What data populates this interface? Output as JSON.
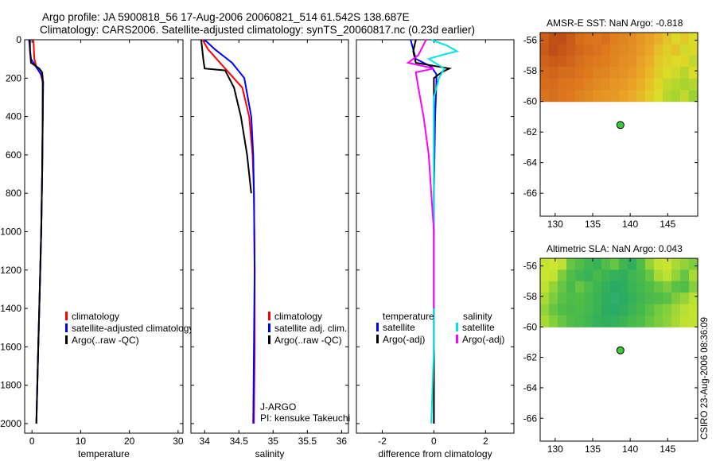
{
  "header": {
    "line1": "Argo profile: JA 5900818_56 17-Aug-2006 20060821_514 61.542S 138.687E",
    "line2": "Climatology: CARS2006. Satellite-adjusted climatology: synTS_20060817.nc (0.23d earlier)"
  },
  "colors": {
    "climatology": "#ff0000",
    "satellite": "#0000ff",
    "argo": "#000000",
    "salinity_satellite": "#00e5e5",
    "salinity_argo": "#ff00ff",
    "marker": "#33cc33"
  },
  "chart_data": [
    {
      "id": "temperature",
      "type": "line",
      "xlabel": "temperature",
      "ylabel": "",
      "xlim": [
        -1.5,
        31
      ],
      "ylim": [
        2050,
        0
      ],
      "xticks": [
        0,
        10,
        20,
        30
      ],
      "yticks": [
        0,
        200,
        400,
        600,
        800,
        1000,
        1200,
        1400,
        1600,
        1800,
        2000
      ],
      "legend": {
        "position": "lower-right",
        "entries": [
          "climatology",
          "satellite-adjusted climatology",
          "Argo(..raw -QC)"
        ]
      },
      "series": [
        {
          "name": "climatology",
          "color_key": "climatology",
          "points": [
            [
              0.3,
              0
            ],
            [
              0.4,
              50
            ],
            [
              0.5,
              100
            ],
            [
              0.9,
              140
            ],
            [
              1.8,
              180
            ],
            [
              2.2,
              220
            ],
            [
              2.2,
              400
            ],
            [
              2.1,
              700
            ],
            [
              1.9,
              1000
            ],
            [
              1.6,
              1300
            ],
            [
              1.3,
              1600
            ],
            [
              1.1,
              1800
            ],
            [
              0.9,
              2000
            ]
          ]
        },
        {
          "name": "satellite-adjusted climatology",
          "color_key": "satellite",
          "points": [
            [
              -0.6,
              0
            ],
            [
              -0.4,
              50
            ],
            [
              -0.2,
              100
            ],
            [
              0.8,
              140
            ],
            [
              1.9,
              180
            ],
            [
              2.3,
              220
            ],
            [
              2.2,
              400
            ],
            [
              2.1,
              700
            ],
            [
              1.9,
              1000
            ],
            [
              1.6,
              1300
            ],
            [
              1.3,
              1600
            ],
            [
              1.1,
              1800
            ],
            [
              0.9,
              2000
            ]
          ]
        },
        {
          "name": "Argo(..raw -QC)",
          "color_key": "argo",
          "points": [
            [
              -0.4,
              0
            ],
            [
              -0.4,
              60
            ],
            [
              -0.2,
              120
            ],
            [
              1.5,
              150
            ],
            [
              2.1,
              170
            ],
            [
              2.2,
              200
            ],
            [
              2.2,
              400
            ],
            [
              2.1,
              700
            ],
            [
              1.9,
              1000
            ],
            [
              1.6,
              1300
            ],
            [
              1.3,
              1600
            ],
            [
              1.1,
              1800
            ],
            [
              0.9,
              2000
            ]
          ]
        }
      ]
    },
    {
      "id": "salinity",
      "type": "line",
      "xlabel": "salinity",
      "ylabel": "",
      "xlim": [
        33.8,
        36.1
      ],
      "ylim": [
        2050,
        0
      ],
      "xticks": [
        34,
        34.5,
        35,
        35.5,
        36
      ],
      "xtick_labels": [
        "34",
        "34.5",
        "35",
        "35.5",
        "36"
      ],
      "yticks": [
        0,
        200,
        400,
        600,
        800,
        1000,
        1200,
        1400,
        1600,
        1800,
        2000
      ],
      "legend": {
        "position": "lower-right",
        "entries": [
          "climatology",
          "satellite adj. clim.",
          "Argo(..raw -QC)"
        ]
      },
      "annotations": [
        "J-ARGO",
        "PI: kensuke Takeuchi"
      ],
      "series": [
        {
          "name": "climatology",
          "color_key": "climatology",
          "points": [
            [
              33.97,
              0
            ],
            [
              34.05,
              50
            ],
            [
              34.3,
              150
            ],
            [
              34.55,
              250
            ],
            [
              34.65,
              400
            ],
            [
              34.7,
              600
            ],
            [
              34.72,
              800
            ],
            [
              34.73,
              1200
            ],
            [
              34.73,
              1600
            ],
            [
              34.72,
              2000
            ]
          ]
        },
        {
          "name": "satellite adj. clim.",
          "color_key": "satellite",
          "points": [
            [
              34.0,
              0
            ],
            [
              34.15,
              50
            ],
            [
              34.4,
              120
            ],
            [
              34.58,
              200
            ],
            [
              34.68,
              400
            ],
            [
              34.71,
              600
            ],
            [
              34.72,
              800
            ],
            [
              34.73,
              1200
            ],
            [
              34.72,
              1600
            ],
            [
              34.71,
              2000
            ]
          ]
        },
        {
          "name": "Argo(..raw -QC)",
          "color_key": "argo",
          "points": [
            [
              33.95,
              0
            ],
            [
              33.98,
              100
            ],
            [
              34.0,
              150
            ],
            [
              34.3,
              160
            ],
            [
              34.43,
              250
            ],
            [
              34.53,
              400
            ],
            [
              34.62,
              600
            ],
            [
              34.68,
              800
            ]
          ]
        }
      ]
    },
    {
      "id": "difference",
      "type": "line",
      "xlabel": "difference from climatology",
      "ylabel": "",
      "xlim": [
        -3,
        3.1
      ],
      "ylim": [
        2050,
        0
      ],
      "xticks": [
        -2,
        0,
        2
      ],
      "yticks": [
        0,
        200,
        400,
        600,
        800,
        1000,
        1200,
        1400,
        1600,
        1800,
        2000
      ],
      "legend": {
        "position": "lower-center",
        "titles": [
          "temperature",
          "salinity"
        ],
        "entries": [
          "satellite",
          "Argo(-adj)",
          "satellite",
          "Argo(-adj)"
        ]
      },
      "series": [
        {
          "name": "temperature satellite",
          "color_key": "satellite",
          "points": [
            [
              -0.9,
              0
            ],
            [
              -0.8,
              50
            ],
            [
              -0.7,
              100
            ],
            [
              -0.1,
              140
            ],
            [
              0.1,
              180
            ],
            [
              0.1,
              220
            ],
            [
              0.05,
              400
            ],
            [
              0.0,
              800
            ],
            [
              0.0,
              1200
            ],
            [
              0.0,
              1600
            ],
            [
              0.0,
              2000
            ]
          ]
        },
        {
          "name": "temperature Argo(-adj)",
          "color_key": "argo",
          "points": [
            [
              -0.7,
              0
            ],
            [
              -0.8,
              60
            ],
            [
              -0.7,
              120
            ],
            [
              0.6,
              150
            ],
            [
              0.3,
              170
            ],
            [
              0.0,
              200
            ],
            [
              0.0,
              400
            ],
            [
              0.0,
              800
            ],
            [
              0.0,
              1200
            ],
            [
              0.0,
              1600
            ],
            [
              0.0,
              2000
            ]
          ]
        },
        {
          "name": "salinity satellite",
          "color_key": "salinity_satellite",
          "points": [
            [
              -0.1,
              0
            ],
            [
              0.5,
              30
            ],
            [
              0.9,
              60
            ],
            [
              0.3,
              80
            ],
            [
              -0.2,
              100
            ],
            [
              0.4,
              150
            ],
            [
              0.2,
              200
            ],
            [
              0.0,
              300
            ],
            [
              0.0,
              700
            ],
            [
              0.0,
              1200
            ],
            [
              0.0,
              1600
            ],
            [
              -0.1,
              2000
            ]
          ]
        },
        {
          "name": "salinity Argo(-adj)",
          "color_key": "salinity_argo",
          "points": [
            [
              -0.3,
              0
            ],
            [
              -0.6,
              80
            ],
            [
              -1.0,
              120
            ],
            [
              0.0,
              150
            ],
            [
              -0.7,
              170
            ],
            [
              -0.6,
              250
            ],
            [
              -0.4,
              400
            ],
            [
              -0.2,
              600
            ],
            [
              -0.1,
              800
            ],
            [
              0.0,
              1000
            ],
            [
              0.0,
              1400
            ]
          ]
        }
      ]
    },
    {
      "id": "amsre_sst_map",
      "type": "heatmap",
      "title": "AMSR-E SST: NaN Argo: -0.818",
      "xlim": [
        128,
        149
      ],
      "ylim": [
        -67.5,
        -55.5
      ],
      "xticks": [
        130,
        135,
        140,
        145
      ],
      "yticks": [
        -56,
        -58,
        -60,
        -62,
        -64,
        -66
      ],
      "data_extent": {
        "lat_min": -60,
        "lat_max": -55.5,
        "lon_min": 128,
        "lon_max": 149
      },
      "marker": {
        "lon": 138.687,
        "lat": -61.542
      },
      "field": [
        [
          0.2,
          0.12,
          0.1,
          0.18,
          0.28,
          0.32,
          0.34,
          0.3,
          0.38,
          0.42,
          0.45,
          0.5,
          0.55,
          0.62,
          0.7,
          0.78,
          0.72,
          0.8
        ],
        [
          0.18,
          0.1,
          0.15,
          0.2,
          0.25,
          0.3,
          0.32,
          0.36,
          0.4,
          0.44,
          0.46,
          0.52,
          0.58,
          0.68,
          0.74,
          0.7,
          0.82,
          0.78
        ],
        [
          0.22,
          0.18,
          0.2,
          0.24,
          0.3,
          0.33,
          0.36,
          0.38,
          0.42,
          0.46,
          0.48,
          0.55,
          0.62,
          0.72,
          0.76,
          0.8,
          0.78,
          0.84
        ],
        [
          0.26,
          0.24,
          0.28,
          0.3,
          0.32,
          0.36,
          0.4,
          0.42,
          0.46,
          0.48,
          0.52,
          0.58,
          0.66,
          0.74,
          0.8,
          0.82,
          0.86,
          0.8
        ],
        [
          0.3,
          0.28,
          0.32,
          0.34,
          0.36,
          0.4,
          0.44,
          0.46,
          0.5,
          0.52,
          0.56,
          0.62,
          0.7,
          0.78,
          0.84,
          0.86,
          0.88,
          0.86
        ],
        [
          0.32,
          0.3,
          0.34,
          0.36,
          0.4,
          0.44,
          0.48,
          0.5,
          0.52,
          0.56,
          0.6,
          0.66,
          0.74,
          0.8,
          0.86,
          0.88,
          0.84,
          0.9
        ]
      ]
    },
    {
      "id": "altimetric_sla_map",
      "type": "heatmap",
      "title": "Altimetric SLA: NaN Argo: 0.043",
      "xlim": [
        128,
        149
      ],
      "ylim": [
        -67.5,
        -55.5
      ],
      "xticks": [
        130,
        135,
        140,
        145
      ],
      "yticks": [
        -56,
        -58,
        -60,
        -62,
        -64,
        -66
      ],
      "data_extent": {
        "lat_min": -60,
        "lat_max": -55.5,
        "lon_min": 128,
        "lon_max": 149
      },
      "marker": {
        "lon": 138.687,
        "lat": -61.542
      },
      "field": [
        [
          0.3,
          0.2,
          0.35,
          0.55,
          0.6,
          0.7,
          0.75,
          0.6,
          0.55,
          0.7,
          0.8,
          0.6,
          0.45,
          0.3,
          0.25,
          0.4,
          0.45,
          0.5
        ],
        [
          0.25,
          0.3,
          0.5,
          0.6,
          0.7,
          0.75,
          0.65,
          0.72,
          0.78,
          0.8,
          0.7,
          0.65,
          0.55,
          0.4,
          0.35,
          0.45,
          0.55,
          0.4
        ],
        [
          0.35,
          0.45,
          0.55,
          0.65,
          0.55,
          0.62,
          0.7,
          0.78,
          0.85,
          0.82,
          0.72,
          0.68,
          0.6,
          0.55,
          0.5,
          0.58,
          0.6,
          0.48
        ],
        [
          0.4,
          0.5,
          0.58,
          0.62,
          0.6,
          0.66,
          0.72,
          0.8,
          0.88,
          0.84,
          0.76,
          0.7,
          0.64,
          0.62,
          0.58,
          0.5,
          0.44,
          0.36
        ],
        [
          0.45,
          0.55,
          0.6,
          0.64,
          0.62,
          0.68,
          0.74,
          0.82,
          0.86,
          0.8,
          0.72,
          0.66,
          0.58,
          0.52,
          0.48,
          0.42,
          0.36,
          0.3
        ],
        [
          0.4,
          0.48,
          0.55,
          0.6,
          0.64,
          0.7,
          0.76,
          0.8,
          0.78,
          0.72,
          0.66,
          0.6,
          0.55,
          0.5,
          0.46,
          0.4,
          0.35,
          0.32
        ]
      ]
    }
  ],
  "footer": {
    "credit": "CSIRO 23-Aug-2006 08:36:09"
  }
}
